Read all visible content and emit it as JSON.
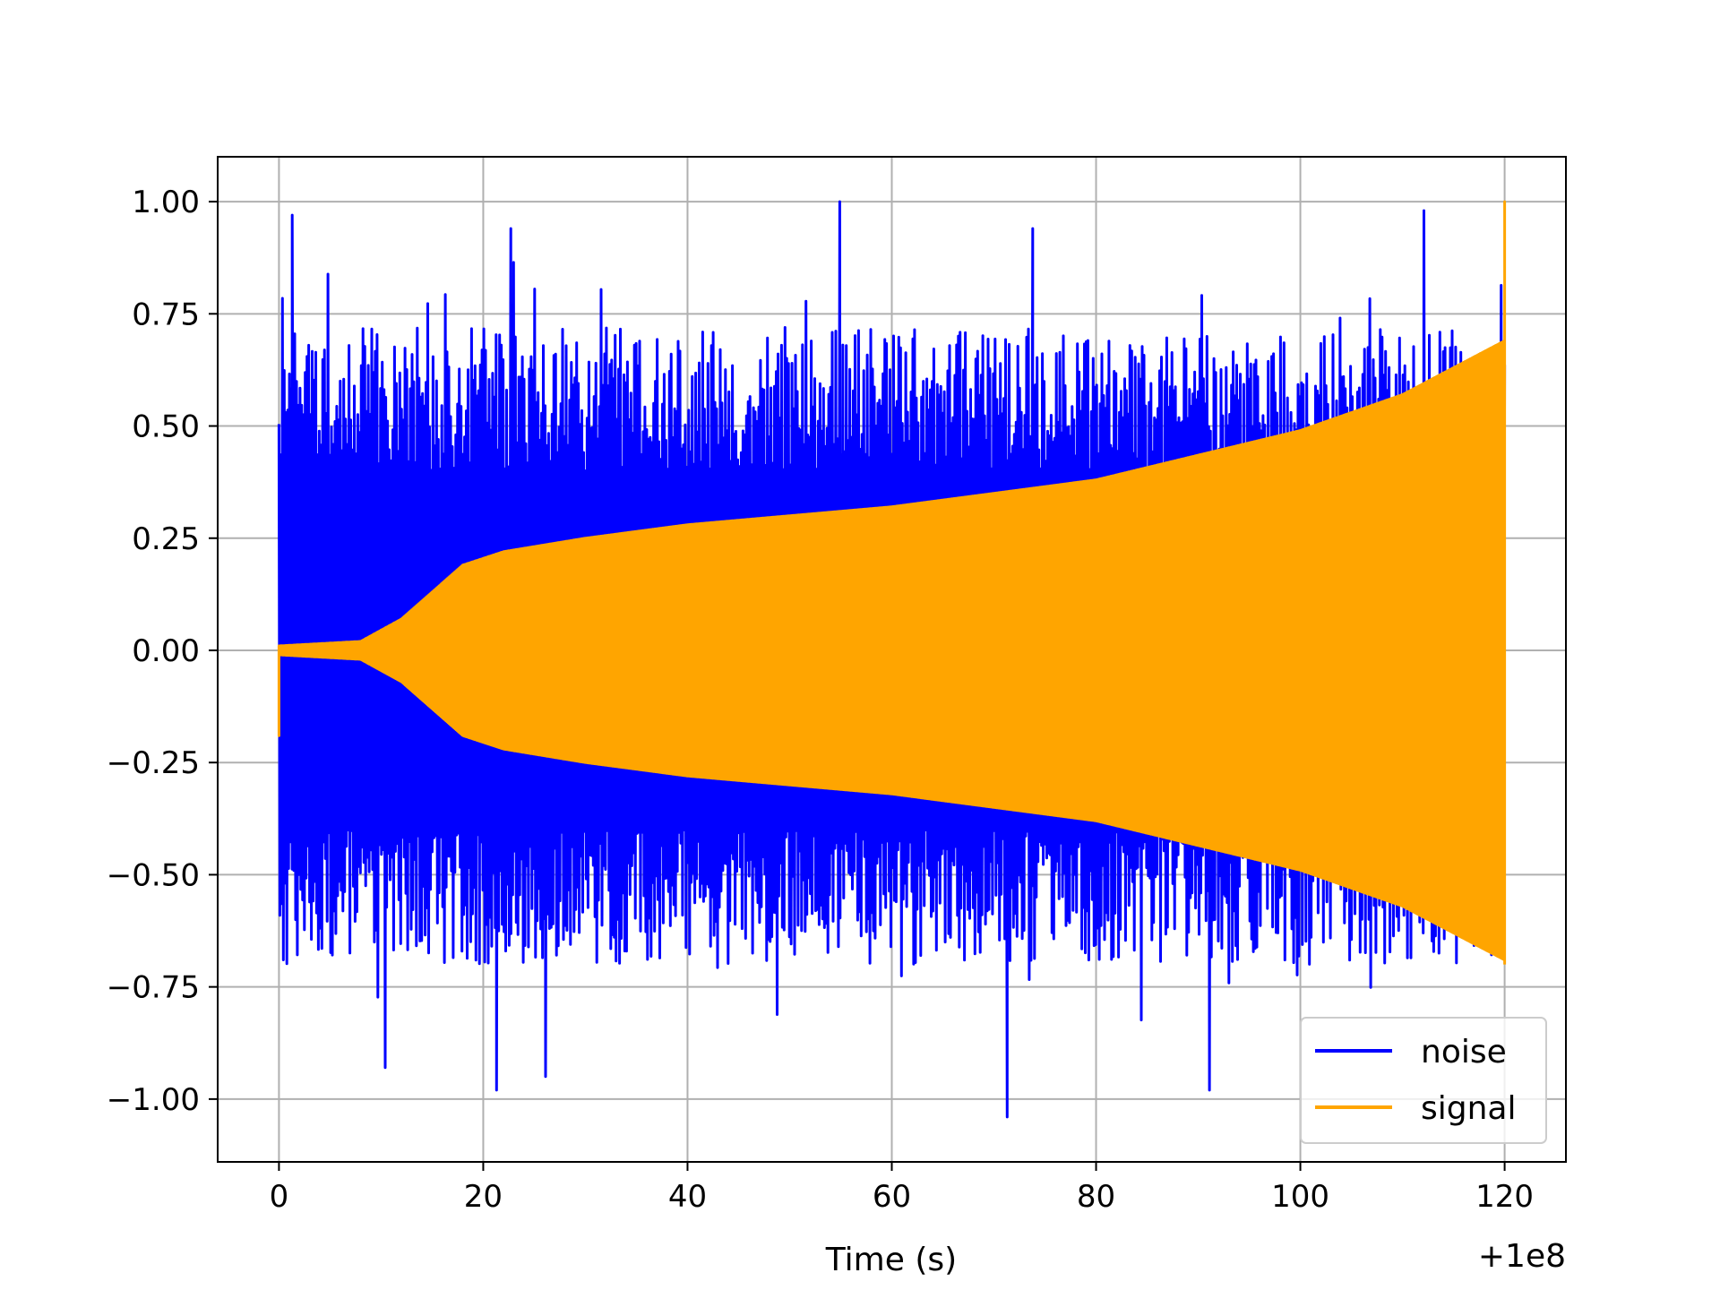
{
  "chart_data": {
    "type": "line",
    "title": "",
    "xlabel": "Time (s)",
    "ylabel": "",
    "x_offset_label": "+1e8",
    "xlim": [
      -6,
      126
    ],
    "ylim": [
      -1.14,
      1.1
    ],
    "x_ticks": [
      0,
      20,
      40,
      60,
      80,
      100,
      120
    ],
    "x_tick_labels": [
      "0",
      "20",
      "40",
      "60",
      "80",
      "100",
      "120"
    ],
    "y_ticks": [
      1.0,
      0.75,
      0.5,
      0.25,
      0.0,
      -0.25,
      -0.5,
      -0.75,
      -1.0
    ],
    "y_tick_labels": [
      "1.00",
      "0.75",
      "0.50",
      "0.25",
      "0.00",
      "−0.25",
      "−0.50",
      "−0.75",
      "−1.00"
    ],
    "grid": true,
    "legend_position": "lower-right",
    "series": [
      {
        "name": "noise",
        "color": "#0000ff",
        "x_range": [
          0,
          120
        ],
        "peak_spikes": [
          {
            "x": 1.3,
            "y": 0.97
          },
          {
            "x": 54.9,
            "y": 1.0
          },
          {
            "x": 112.1,
            "y": 0.98
          },
          {
            "x": 22.7,
            "y": 0.94
          },
          {
            "x": 73.8,
            "y": 0.94
          },
          {
            "x": 21.3,
            "y": -0.98
          },
          {
            "x": 71.3,
            "y": -1.04
          },
          {
            "x": 10.4,
            "y": -0.93
          },
          {
            "x": 26.1,
            "y": -0.95
          },
          {
            "x": 91.1,
            "y": -0.98
          }
        ]
      },
      {
        "name": "signal",
        "color": "#ffa500",
        "x_range": [
          0,
          120
        ],
        "envelope": [
          {
            "x": 0,
            "y": 0.01
          },
          {
            "x": 8,
            "y": 0.02
          },
          {
            "x": 12,
            "y": 0.07
          },
          {
            "x": 18,
            "y": 0.19
          },
          {
            "x": 22,
            "y": 0.22
          },
          {
            "x": 30,
            "y": 0.25
          },
          {
            "x": 40,
            "y": 0.28
          },
          {
            "x": 60,
            "y": 0.32
          },
          {
            "x": 80,
            "y": 0.38
          },
          {
            "x": 100,
            "y": 0.49
          },
          {
            "x": 110,
            "y": 0.57
          },
          {
            "x": 120,
            "y": 0.69
          }
        ],
        "end_spike": {
          "x": 120,
          "y": 1.0
        },
        "start_dip": {
          "x": 0,
          "y": -0.19
        }
      }
    ]
  }
}
